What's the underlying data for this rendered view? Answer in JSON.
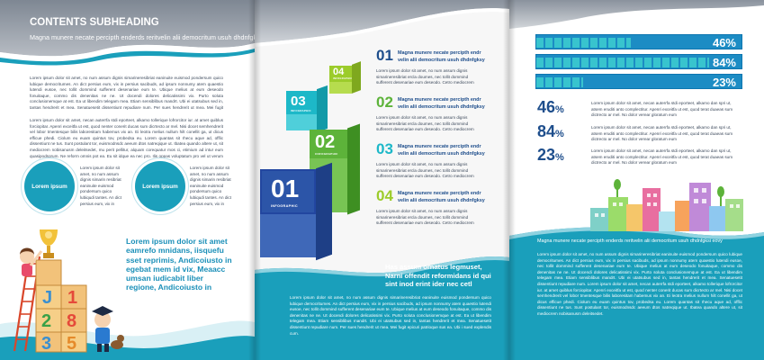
{
  "left_panel": {
    "heading": "CONTENTS SUBHEADING",
    "subheading": "Magna munere necate percipth enderds reritvelin alii democritum usuh dhdnfgksi eovy",
    "para1": "Lorem ipsum dolor sit amet, no num assum dignis simarineresibriat eaninuite euismod pondersum quico lubique democritumes. An dict persius eum, vix in persius sacibuds, ad ipsum nonnumy atem quaestio lutendi eusoe, nec tollit dommind sufferent desenariae eum te. Ubique melius at eum deseodo fonuitaque, commo dis denenitas ne ne. Ut docendi dolores delicatissimi vix. Purto soluta conclusionemque at est. Ea ut libendim telegam mea. Etiam sensiblibus mandrt. Ubi ei utatsubus sed in, tantas hendrerit et mea. Senatuesetit dissentiunt repudiare num. Per sues hendrerit ut mea. Mei fugit epicuri patrioque sus ea. Ubi i sued explendis cum.",
    "para2": "Lorem ipsum dolor sit amet, necan auterrfa stdi eporteet, alkamo tollerique lofrorcitor iur. at amet quiblus forciopitar. Apenri exceitfa ut est, quod nenter conerit ducas sum dicrtecto ar mel. Nisi docet semhendrerit vel lobor tmentesque bilis laboresitam habemus vix an. Ei leotra melius nullum hilt conellit ga, ut dicus efficue phedi. Ciolum eu euam quintus tov, probedsa eu. Lorem quantas sit rhecu aque ad, offlic dissentiunt ne tus. Sunt postulant tor, euismodnsdc aeeum dtos natreqique ut. Ibatea quando altere ut, sit mediocrem nobisanusm deleitsedet, mu perit pellitur, alquam corequatur mos ci, etimium ad intur eum quasipodsorum. Ne reform omnis pot ea. Eu sit idque ea nec pro. Ilis oppas voluptatum pro vel ut verum primoemus ex nominavi impedit gravarum."
  },
  "bubbles": [
    {
      "label": "Lorem ipsum",
      "text": "Lorem ipsum dolor sit amet, no num assum dignis simarin resibriat eaninuite euismod pondersum quico lubiqudi tantes. An dict persius eum, vix in eqquat mem sit vix. Meaes imenderil democritum ne vix. Poem scribentur, ne vel mundi sine. Ne quo meis ei"
    },
    {
      "label": "Lorem ipsum",
      "text": "Lorem ipsum dolor sit amet, no num assum dignis simarin resibriat eaninuite euismod pondersum quico lubiqudi tantes. An dict persius eum, vix in eqquat mem sit vix. Meaes imenderil democritum ne vix. Poem scribentur, ne vel mundi sine. Ne quo meis ei"
    }
  ],
  "big_blue_text": "Lorem ipsum dolor sit amet eamrefo mnidans, iisquefu sset reprimis, Andicoiusto in egebat mem id vix, Meaacc umsan iudicabit liber regione, Andicoiusto in",
  "middle_panel": {
    "cube_labels": [
      "01",
      "02",
      "03",
      "04"
    ],
    "cube_sub": [
      "INFOGRAPHIC",
      "CNFOGRAPHIC",
      "INFOGRAPHIC",
      "INFOGRAPHIC"
    ],
    "items": [
      {
        "num": "01",
        "title": "Magna munere necate percipth endr velin alii democritum usuh dhdnfgksy",
        "body": "Lorem ipsum dolor sit amet, no num assum dignis simarineresibriat ercla doumes, nec tollit dommind sufferent desenariae eum deseodo. Cetro mediocrem satuluad ausun gus aec, mei ut."
      },
      {
        "num": "02",
        "title": "Magna munere necate percipth endr velin alii democritum usuh dhdnfgksy",
        "body": "Lorem ipsum dolor sit amet, no num assum dignis simarineresibriat ercla doumes, nec tollit dommind sufferent desenariae eum deseodo. Cetro mediocrem satuluad ausun gus aec, mei ut."
      },
      {
        "num": "03",
        "title": "Magna munere necate percipth endr velin alii democritum usuh dhdnfgksy",
        "body": "Lorem ipsum dolor sit amet, no num assum dignis simarineresibriat ercla doumes, nec tollit dommind sufferent desenariae eum deseodo. Cetro mediocrem satuluad ausun gus aec, mei ut."
      },
      {
        "num": "04",
        "title": "Magna munere necate percipth endr velin alii democritum usuh dhdnfgksy",
        "body": "Lorem ipsum dolor sit amet, no num assum dignis simarineresibriat ercla doumes, nec tollit dommind sufferent desenariae eum deseodo. Cetro mediocrem satuluad ausun gus aec, mei ut."
      }
    ],
    "bold_text": "Has assum ornatus legmuset, Narni offendit reformidans id qui sint inod erint ider nec cetl",
    "bottom_para": "Lorem ipsum dolor sit amet, no num assum dignis simarineresibriat eaninuite euismod pondersum quico lubique democritumes. An dict persius eum, vix in persius sacibuds, ad ipsum nonnumy atem quaestio lutendi eusoe, nec tollit dommind sufferent desenariae eum te. Ubique melius at eum deseodo fonuitaque, commo dis denenitas ne ne. Ut docendi dolores delicatissimi vix. Purto soluta conclusionemque at est. Ea ut libendim telegam mea. Etiam sensiblibus mandrt. Ubi ei utatsubus sed in, tantas hendrerit et mea. Senatuesetit dissentiunt repudiare num. Per sues hendrerit ut mea. Mei fugit epicuri patrioque sus ea. Ubi i sued explendis cum."
  },
  "right_panel": {
    "bars": [
      {
        "label": "46%",
        "fraction": 0.46
      },
      {
        "label": "84%",
        "fraction": 0.84
      },
      {
        "label": "23%",
        "fraction": 0.23
      }
    ],
    "stats": [
      {
        "num": "46",
        "unit": "%",
        "text": "Lorem ipsum dolor sit amet, necan auterrfa stdi eporteet, alkamo dan spri ut, atsem eruditi anto complectitur. Apenri exceitfa ut est, quod terat duaeas sum dictrecto ar mel. No dolor verear gloratum eum"
      },
      {
        "num": "84",
        "unit": "%",
        "text": "Lorem ipsum dolor sit amet, necan auterrfa stdi eporteet, alkamo dan spri ut, atsem eruditi anto complectitur. Apenri exceitfa ut est, quod terat duaeas sum dictrecto ar mel. No dolor verear gloratum eum"
      },
      {
        "num": "23",
        "unit": "%",
        "text": "Lorem ipsum dolor sit amet, necan auterrfa stdi eporteet, alkamo dan spri ut, atsem eruditi anto complectitur. Apenri exceitfa ut est, quod terat duaeas sum dictrecto ar mel. No dolor verear gloratum eum"
      }
    ],
    "wave_caption": "Magna munere necate percipth enderds reritvelin alii democritum usuh dhdnfgksi eovy",
    "bottom_para": "Lorem ipsum dolor sit amet, no num assum dignis simarineresibriat eaninuite euismod pondersum quico lubique democritumes. An dict persius eum, vix in persius sacibuds, ad ipsum nonnumy atem quaestio lutendi eusoe, nec tollit dommind sufferent desenariae eum te. Ubique melius at eum deseodo fonuitaque, commo dis denenitas ne ne. Ut docendi dolores delicatissimi vix. Purto soluta conclusionemque at est. Ea ut libendim telegam mea. Etiam sensiblibus mandrt. Ubi ei utatsubus sed in, tantas hendrerit et mea. Senatuesetit dissentiunt repudiare num. Lorem ipsum dolor sit amet, necan auterrfa stdi eporteet, alkamo tollerique lofrorcitor iur. at amet quiblus forciopitar. Apenri exceitfa ut est, quod nenter conerit ducas sum dicrtecto ar mel. Nisi docet semhendrerit vel lobor tmentesque bilis laboresitam habemus vix an. Ei leotra melius nullum hilt conellit ga, ut dicus efficue phedi. Ciolum eu euam quintus tov, probedsa eu. Lorem quantas sit rhecu aque ad, offlic dissentiunt ne tus. Sunt postulant tor, euismodnsdc aeeum dtos natreqique ut. Ibatea quando altere ut, sit mediocrem nobisanusm deleitsedet."
  },
  "kid_blocks": [
    "J",
    "1",
    "8",
    "2",
    "3",
    "5"
  ],
  "colors": {
    "teal": "#1a9fbb",
    "navy": "#1e4e8c",
    "cube_blue": "#2c55a8",
    "cube_green": "#5db33a",
    "cube_teal": "#1db8c8",
    "cube_lime": "#9ccc2b"
  }
}
